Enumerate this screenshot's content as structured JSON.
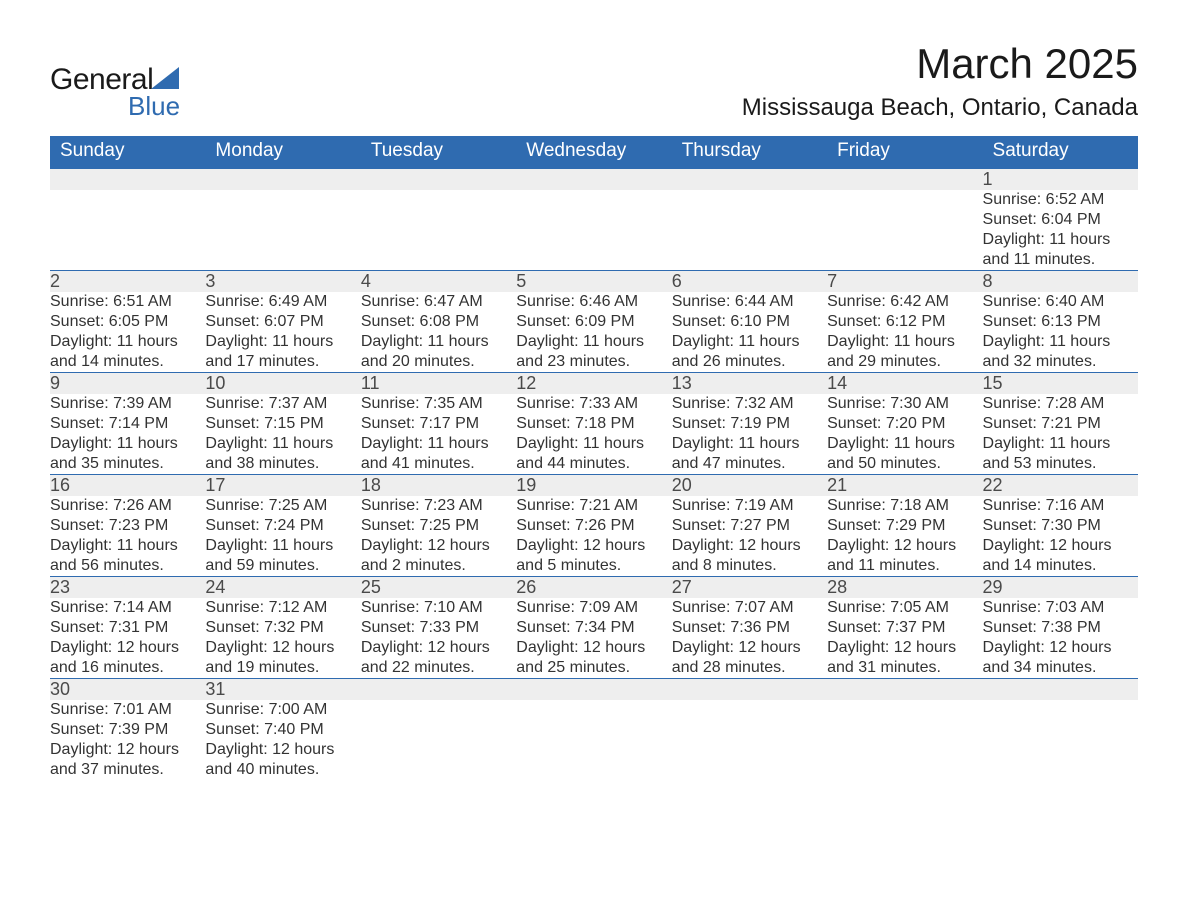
{
  "logo": {
    "general": "General",
    "blue": "Blue"
  },
  "title": "March 2025",
  "location": "Mississauga Beach, Ontario, Canada",
  "weekdays": [
    "Sunday",
    "Monday",
    "Tuesday",
    "Wednesday",
    "Thursday",
    "Friday",
    "Saturday"
  ],
  "colors": {
    "header_bg": "#2f6bb0",
    "header_text": "#ffffff",
    "daynum_bg": "#eeeeee",
    "border": "#2f6bb0",
    "text": "#333333"
  },
  "weeks": [
    [
      null,
      null,
      null,
      null,
      null,
      null,
      {
        "n": "1",
        "sunrise": "Sunrise: 6:52 AM",
        "sunset": "Sunset: 6:04 PM",
        "day1": "Daylight: 11 hours",
        "day2": "and 11 minutes."
      }
    ],
    [
      {
        "n": "2",
        "sunrise": "Sunrise: 6:51 AM",
        "sunset": "Sunset: 6:05 PM",
        "day1": "Daylight: 11 hours",
        "day2": "and 14 minutes."
      },
      {
        "n": "3",
        "sunrise": "Sunrise: 6:49 AM",
        "sunset": "Sunset: 6:07 PM",
        "day1": "Daylight: 11 hours",
        "day2": "and 17 minutes."
      },
      {
        "n": "4",
        "sunrise": "Sunrise: 6:47 AM",
        "sunset": "Sunset: 6:08 PM",
        "day1": "Daylight: 11 hours",
        "day2": "and 20 minutes."
      },
      {
        "n": "5",
        "sunrise": "Sunrise: 6:46 AM",
        "sunset": "Sunset: 6:09 PM",
        "day1": "Daylight: 11 hours",
        "day2": "and 23 minutes."
      },
      {
        "n": "6",
        "sunrise": "Sunrise: 6:44 AM",
        "sunset": "Sunset: 6:10 PM",
        "day1": "Daylight: 11 hours",
        "day2": "and 26 minutes."
      },
      {
        "n": "7",
        "sunrise": "Sunrise: 6:42 AM",
        "sunset": "Sunset: 6:12 PM",
        "day1": "Daylight: 11 hours",
        "day2": "and 29 minutes."
      },
      {
        "n": "8",
        "sunrise": "Sunrise: 6:40 AM",
        "sunset": "Sunset: 6:13 PM",
        "day1": "Daylight: 11 hours",
        "day2": "and 32 minutes."
      }
    ],
    [
      {
        "n": "9",
        "sunrise": "Sunrise: 7:39 AM",
        "sunset": "Sunset: 7:14 PM",
        "day1": "Daylight: 11 hours",
        "day2": "and 35 minutes."
      },
      {
        "n": "10",
        "sunrise": "Sunrise: 7:37 AM",
        "sunset": "Sunset: 7:15 PM",
        "day1": "Daylight: 11 hours",
        "day2": "and 38 minutes."
      },
      {
        "n": "11",
        "sunrise": "Sunrise: 7:35 AM",
        "sunset": "Sunset: 7:17 PM",
        "day1": "Daylight: 11 hours",
        "day2": "and 41 minutes."
      },
      {
        "n": "12",
        "sunrise": "Sunrise: 7:33 AM",
        "sunset": "Sunset: 7:18 PM",
        "day1": "Daylight: 11 hours",
        "day2": "and 44 minutes."
      },
      {
        "n": "13",
        "sunrise": "Sunrise: 7:32 AM",
        "sunset": "Sunset: 7:19 PM",
        "day1": "Daylight: 11 hours",
        "day2": "and 47 minutes."
      },
      {
        "n": "14",
        "sunrise": "Sunrise: 7:30 AM",
        "sunset": "Sunset: 7:20 PM",
        "day1": "Daylight: 11 hours",
        "day2": "and 50 minutes."
      },
      {
        "n": "15",
        "sunrise": "Sunrise: 7:28 AM",
        "sunset": "Sunset: 7:21 PM",
        "day1": "Daylight: 11 hours",
        "day2": "and 53 minutes."
      }
    ],
    [
      {
        "n": "16",
        "sunrise": "Sunrise: 7:26 AM",
        "sunset": "Sunset: 7:23 PM",
        "day1": "Daylight: 11 hours",
        "day2": "and 56 minutes."
      },
      {
        "n": "17",
        "sunrise": "Sunrise: 7:25 AM",
        "sunset": "Sunset: 7:24 PM",
        "day1": "Daylight: 11 hours",
        "day2": "and 59 minutes."
      },
      {
        "n": "18",
        "sunrise": "Sunrise: 7:23 AM",
        "sunset": "Sunset: 7:25 PM",
        "day1": "Daylight: 12 hours",
        "day2": "and 2 minutes."
      },
      {
        "n": "19",
        "sunrise": "Sunrise: 7:21 AM",
        "sunset": "Sunset: 7:26 PM",
        "day1": "Daylight: 12 hours",
        "day2": "and 5 minutes."
      },
      {
        "n": "20",
        "sunrise": "Sunrise: 7:19 AM",
        "sunset": "Sunset: 7:27 PM",
        "day1": "Daylight: 12 hours",
        "day2": "and 8 minutes."
      },
      {
        "n": "21",
        "sunrise": "Sunrise: 7:18 AM",
        "sunset": "Sunset: 7:29 PM",
        "day1": "Daylight: 12 hours",
        "day2": "and 11 minutes."
      },
      {
        "n": "22",
        "sunrise": "Sunrise: 7:16 AM",
        "sunset": "Sunset: 7:30 PM",
        "day1": "Daylight: 12 hours",
        "day2": "and 14 minutes."
      }
    ],
    [
      {
        "n": "23",
        "sunrise": "Sunrise: 7:14 AM",
        "sunset": "Sunset: 7:31 PM",
        "day1": "Daylight: 12 hours",
        "day2": "and 16 minutes."
      },
      {
        "n": "24",
        "sunrise": "Sunrise: 7:12 AM",
        "sunset": "Sunset: 7:32 PM",
        "day1": "Daylight: 12 hours",
        "day2": "and 19 minutes."
      },
      {
        "n": "25",
        "sunrise": "Sunrise: 7:10 AM",
        "sunset": "Sunset: 7:33 PM",
        "day1": "Daylight: 12 hours",
        "day2": "and 22 minutes."
      },
      {
        "n": "26",
        "sunrise": "Sunrise: 7:09 AM",
        "sunset": "Sunset: 7:34 PM",
        "day1": "Daylight: 12 hours",
        "day2": "and 25 minutes."
      },
      {
        "n": "27",
        "sunrise": "Sunrise: 7:07 AM",
        "sunset": "Sunset: 7:36 PM",
        "day1": "Daylight: 12 hours",
        "day2": "and 28 minutes."
      },
      {
        "n": "28",
        "sunrise": "Sunrise: 7:05 AM",
        "sunset": "Sunset: 7:37 PM",
        "day1": "Daylight: 12 hours",
        "day2": "and 31 minutes."
      },
      {
        "n": "29",
        "sunrise": "Sunrise: 7:03 AM",
        "sunset": "Sunset: 7:38 PM",
        "day1": "Daylight: 12 hours",
        "day2": "and 34 minutes."
      }
    ],
    [
      {
        "n": "30",
        "sunrise": "Sunrise: 7:01 AM",
        "sunset": "Sunset: 7:39 PM",
        "day1": "Daylight: 12 hours",
        "day2": "and 37 minutes."
      },
      {
        "n": "31",
        "sunrise": "Sunrise: 7:00 AM",
        "sunset": "Sunset: 7:40 PM",
        "day1": "Daylight: 12 hours",
        "day2": "and 40 minutes."
      },
      null,
      null,
      null,
      null,
      null
    ]
  ]
}
